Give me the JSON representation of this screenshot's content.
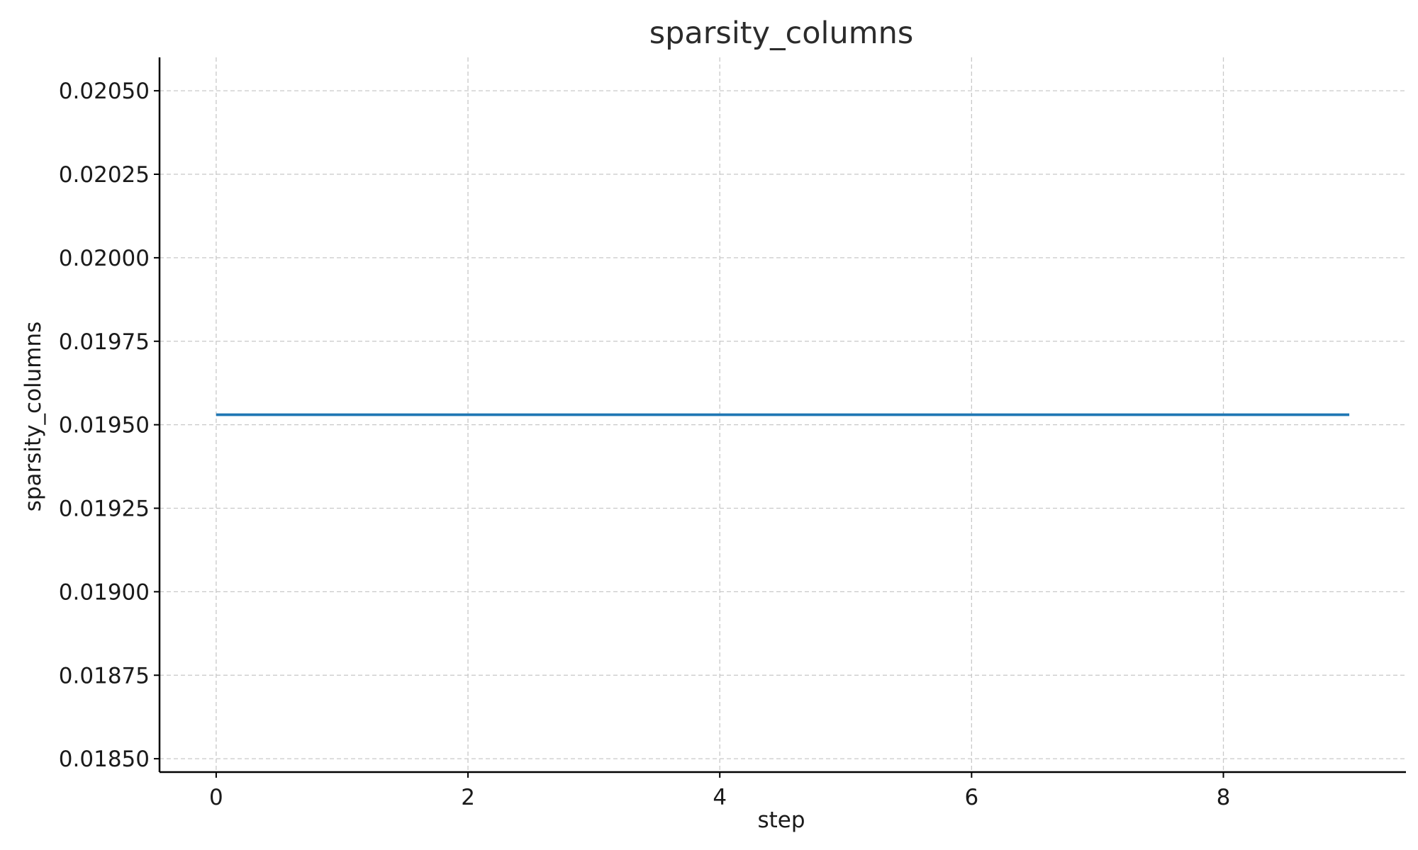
{
  "chart_data": {
    "type": "line",
    "title": "sparsity_columns",
    "xlabel": "step",
    "ylabel": "sparsity_columns",
    "x": [
      0,
      1,
      2,
      3,
      4,
      5,
      6,
      7,
      8,
      9
    ],
    "series": [
      {
        "values": [
          0.01953,
          0.01953,
          0.01953,
          0.01953,
          0.01953,
          0.01953,
          0.01953,
          0.01953,
          0.01953,
          0.01953
        ],
        "color": "#1f77b4"
      }
    ],
    "xlim": [
      -0.45,
      9.45
    ],
    "ylim": [
      0.01846,
      0.0206
    ],
    "xticks": [
      0,
      2,
      4,
      6,
      8
    ],
    "xtick_labels": [
      "0",
      "2",
      "4",
      "6",
      "8"
    ],
    "yticks": [
      0.0185,
      0.01875,
      0.019,
      0.01925,
      0.0195,
      0.01975,
      0.02,
      0.02025,
      0.0205
    ],
    "ytick_labels": [
      "0.01850",
      "0.01875",
      "0.01900",
      "0.01925",
      "0.01950",
      "0.01975",
      "0.02000",
      "0.02025",
      "0.02050"
    ],
    "grid": true,
    "legend": false
  }
}
